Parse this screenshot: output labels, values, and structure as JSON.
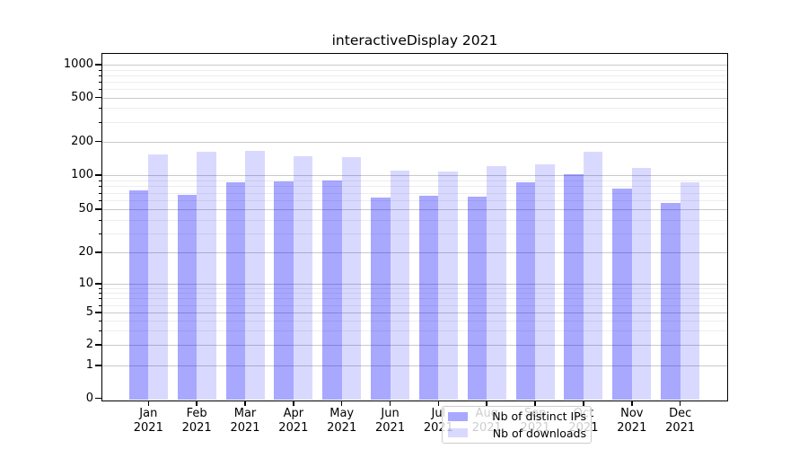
{
  "chart_data": {
    "type": "bar",
    "title": "interactiveDisplay 2021",
    "categories": [
      "Jan",
      "Feb",
      "Mar",
      "Apr",
      "May",
      "Jun",
      "Jul",
      "Aug",
      "Sep",
      "Oct",
      "Nov",
      "Dec"
    ],
    "year_label": "2021",
    "series": [
      {
        "name": "Nb of distinct IPs",
        "color": "rgba(0,0,255,0.34)",
        "values": [
          73,
          67,
          87,
          88,
          90,
          63,
          66,
          64,
          87,
          102,
          76,
          57
        ]
      },
      {
        "name": "Nb of downloads",
        "color": "rgba(0,0,255,0.15)",
        "values": [
          153,
          162,
          164,
          148,
          146,
          110,
          108,
          120,
          125,
          163,
          115,
          87
        ]
      }
    ],
    "xlabel": "",
    "ylabel": "",
    "y_scale": "symlog",
    "y_ticks": [
      0,
      1,
      2,
      5,
      10,
      20,
      50,
      100,
      200,
      500,
      1000
    ],
    "y_minor_ticks": [
      3,
      4,
      6,
      7,
      8,
      9,
      30,
      40,
      60,
      70,
      80,
      90,
      300,
      400,
      600,
      700,
      800,
      900
    ],
    "ylim": [
      0,
      1000
    ],
    "grid": "on",
    "legend_position": "lower center"
  }
}
